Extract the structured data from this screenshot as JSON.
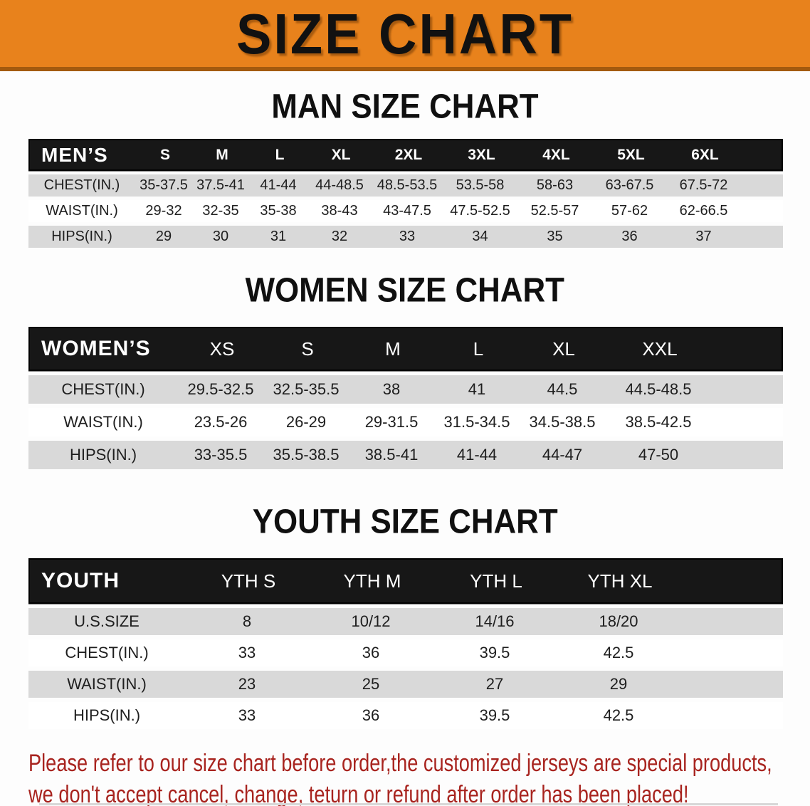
{
  "banner": {
    "title": "SIZE CHART"
  },
  "colors": {
    "banner_bg": "#E8821C",
    "banner_edge": "#A35A0E",
    "header_band": "#171717",
    "row_gray": "#D9D9D9",
    "disclaimer_red": "#A8241F"
  },
  "sections": [
    {
      "id": "mens",
      "heading": "MAN SIZE CHART",
      "table": {
        "label": "MEN’S",
        "sizes": [
          "S",
          "M",
          "L",
          "XL",
          "2XL",
          "3XL",
          "4XL",
          "5XL",
          "6XL"
        ],
        "rows": [
          {
            "label": "CHEST(IN.)",
            "values": [
              "35-37.5",
              "37.5-41",
              "41-44",
              "44-48.5",
              "48.5-53.5",
              "53.5-58",
              "58-63",
              "63-67.5",
              "67.5-72"
            ]
          },
          {
            "label": "WAIST(IN.)",
            "values": [
              "29-32",
              "32-35",
              "35-38",
              "38-43",
              "43-47.5",
              "47.5-52.5",
              "52.5-57",
              "57-62",
              "62-66.5"
            ]
          },
          {
            "label": "HIPS(IN.)",
            "values": [
              "29",
              "30",
              "31",
              "32",
              "33",
              "34",
              "35",
              "36",
              "37"
            ]
          }
        ]
      }
    },
    {
      "id": "womens",
      "heading": "WOMEN SIZE CHART",
      "table": {
        "label": "WOMEN’S",
        "sizes": [
          "XS",
          "S",
          "M",
          "L",
          "XL",
          "XXL"
        ],
        "rows": [
          {
            "label": "CHEST(IN.)",
            "values": [
              "29.5-32.5",
              "32.5-35.5",
              "38",
              "41",
              "44.5",
              "44.5-48.5"
            ]
          },
          {
            "label": "WAIST(IN.)",
            "values": [
              "23.5-26",
              "26-29",
              "29-31.5",
              "31.5-34.5",
              "34.5-38.5",
              "38.5-42.5"
            ]
          },
          {
            "label": "HIPS(IN.)",
            "values": [
              "33-35.5",
              "35.5-38.5",
              "38.5-41",
              "41-44",
              "44-47",
              "47-50"
            ]
          }
        ]
      }
    },
    {
      "id": "youth",
      "heading": "YOUTH SIZE CHART",
      "table": {
        "label": "YOUTH",
        "sizes": [
          "YTH S",
          "YTH M",
          "YTH L",
          "YTH XL"
        ],
        "rows": [
          {
            "label": "U.S.SIZE",
            "values": [
              "8",
              "10/12",
              "14/16",
              "18/20"
            ]
          },
          {
            "label": "CHEST(IN.)",
            "values": [
              "33",
              "36",
              "39.5",
              "42.5"
            ]
          },
          {
            "label": "WAIST(IN.)",
            "values": [
              "23",
              "25",
              "27",
              "29"
            ]
          },
          {
            "label": "HIPS(IN.)",
            "values": [
              "33",
              "36",
              "39.5",
              "42.5"
            ]
          }
        ]
      }
    }
  ],
  "disclaimer": {
    "line1": "Please refer to our size chart before order,the customized jerseys are special products,",
    "line2": "we don't accept cancel, change, teturn or refund after order has been placed!"
  }
}
